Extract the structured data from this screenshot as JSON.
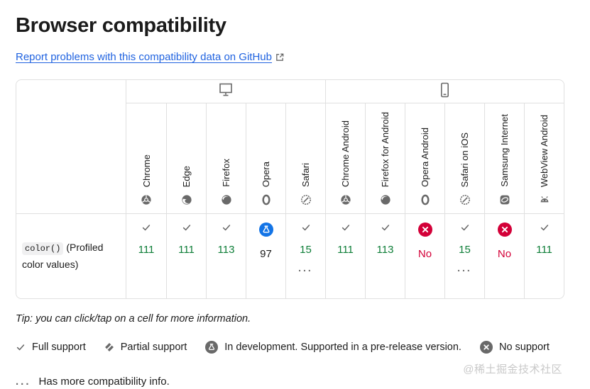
{
  "page": {
    "title": "Browser compatibility",
    "report_link": "Report problems with this compatibility data on GitHub"
  },
  "table": {
    "groups": [
      {
        "id": "desktop",
        "icon": "desktop-icon",
        "span": 5
      },
      {
        "id": "mobile",
        "icon": "mobile-icon",
        "span": 6
      }
    ],
    "browsers": [
      {
        "id": "chrome",
        "label": "Chrome",
        "icon": "chrome-icon"
      },
      {
        "id": "edge",
        "label": "Edge",
        "icon": "edge-icon"
      },
      {
        "id": "firefox",
        "label": "Firefox",
        "icon": "firefox-icon"
      },
      {
        "id": "opera",
        "label": "Opera",
        "icon": "opera-icon"
      },
      {
        "id": "safari",
        "label": "Safari",
        "icon": "safari-icon"
      },
      {
        "id": "chrome-android",
        "label": "Chrome Android",
        "icon": "chrome-icon"
      },
      {
        "id": "firefox-android",
        "label": "Firefox for Android",
        "icon": "firefox-icon"
      },
      {
        "id": "opera-android",
        "label": "Opera Android",
        "icon": "opera-icon"
      },
      {
        "id": "safari-ios",
        "label": "Safari on iOS",
        "icon": "safari-icon"
      },
      {
        "id": "samsung-internet",
        "label": "Samsung Internet",
        "icon": "samsung-icon"
      },
      {
        "id": "webview-android",
        "label": "WebView Android",
        "icon": "android-icon"
      }
    ],
    "rows": [
      {
        "feature_code": "color()",
        "feature_text": "(Profiled color values)",
        "cells": [
          {
            "browser": "chrome",
            "status": "full",
            "version": "111",
            "more": false
          },
          {
            "browser": "edge",
            "status": "full",
            "version": "111",
            "more": false
          },
          {
            "browser": "firefox",
            "status": "full",
            "version": "113",
            "more": false
          },
          {
            "browser": "opera",
            "status": "preview",
            "version": "97",
            "more": false
          },
          {
            "browser": "safari",
            "status": "full",
            "version": "15",
            "more": true
          },
          {
            "browser": "chrome-android",
            "status": "full",
            "version": "111",
            "more": false
          },
          {
            "browser": "firefox-android",
            "status": "full",
            "version": "113",
            "more": false
          },
          {
            "browser": "opera-android",
            "status": "none",
            "version": "No",
            "more": false
          },
          {
            "browser": "safari-ios",
            "status": "full",
            "version": "15",
            "more": true
          },
          {
            "browser": "samsung-internet",
            "status": "none",
            "version": "No",
            "more": false
          },
          {
            "browser": "webview-android",
            "status": "full",
            "version": "111",
            "more": false
          }
        ]
      }
    ],
    "more_indicator": "..."
  },
  "footer": {
    "tip": "Tip: you can click/tap on a cell for more information.",
    "legend": [
      {
        "icon": "check-icon",
        "label": "Full support"
      },
      {
        "icon": "partial-icon",
        "label": "Partial support"
      },
      {
        "icon": "preview-icon",
        "label": "In development. Supported in a pre-release version."
      },
      {
        "icon": "no-icon",
        "label": "No support"
      }
    ],
    "more_info": "Has more compatibility info.",
    "watermark": "@稀土掘金技术社区"
  },
  "colors": {
    "full_support_green": "#0e7e38",
    "no_support_red": "#d30038",
    "preview_blue": "#1374e6",
    "icon_gray": "#696969",
    "border_gray": "#e0e0e0",
    "link_blue": "#2063e0"
  }
}
